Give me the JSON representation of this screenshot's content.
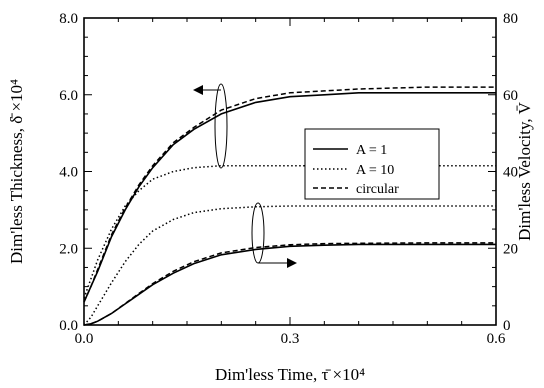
{
  "chart_data": {
    "type": "line",
    "xlabel": "Dim'less Time, τ̄ ×10⁴",
    "ylabel_left": "Dim'less Thickness, δ̄ ×10⁴",
    "ylabel_right": "Dim'less Velocity, V̄",
    "xlim": [
      0,
      0.6
    ],
    "ylim_left": [
      0,
      8
    ],
    "ylim_right": [
      0,
      80
    ],
    "x_ticks": [
      "0.0",
      "0.3",
      "0.6"
    ],
    "y_left_ticks": [
      "0.0",
      "2.0",
      "4.0",
      "6.0",
      "8.0"
    ],
    "y_right_ticks": [
      "0",
      "20",
      "40",
      "60",
      "80"
    ],
    "grid": false,
    "legend": {
      "placement": "right",
      "entries": [
        {
          "label": "A = 1",
          "style": "solid"
        },
        {
          "label": "A = 10",
          "style": "dotted"
        },
        {
          "label": "circular",
          "style": "dashed"
        }
      ]
    },
    "series": [
      {
        "legend": "A = 1",
        "axis": "left",
        "style": "solid",
        "x": [
          0,
          0.01,
          0.02,
          0.04,
          0.06,
          0.08,
          0.1,
          0.13,
          0.16,
          0.2,
          0.25,
          0.3,
          0.35,
          0.4,
          0.5,
          0.6
        ],
        "y": [
          0.6,
          1.0,
          1.4,
          2.3,
          3.0,
          3.6,
          4.1,
          4.7,
          5.1,
          5.5,
          5.8,
          5.95,
          6.0,
          6.05,
          6.05,
          6.05
        ]
      },
      {
        "legend": "circular",
        "axis": "left",
        "style": "dashed",
        "x": [
          0,
          0.01,
          0.02,
          0.04,
          0.06,
          0.08,
          0.1,
          0.13,
          0.16,
          0.2,
          0.25,
          0.3,
          0.35,
          0.4,
          0.5,
          0.6
        ],
        "y": [
          0.6,
          1.0,
          1.45,
          2.35,
          3.05,
          3.65,
          4.15,
          4.75,
          5.15,
          5.6,
          5.9,
          6.05,
          6.1,
          6.15,
          6.2,
          6.2
        ]
      },
      {
        "legend": "A = 10",
        "axis": "left",
        "style": "dotted",
        "x": [
          0,
          0.01,
          0.02,
          0.04,
          0.06,
          0.08,
          0.1,
          0.13,
          0.16,
          0.2,
          0.25,
          0.3,
          0.4,
          0.5,
          0.6
        ],
        "y": [
          0.7,
          1.2,
          1.7,
          2.5,
          3.1,
          3.5,
          3.8,
          4.0,
          4.1,
          4.15,
          4.15,
          4.15,
          4.15,
          4.15,
          4.15
        ]
      },
      {
        "legend": "A = 10",
        "axis": "right",
        "style": "dotted",
        "x": [
          0,
          0.01,
          0.02,
          0.04,
          0.06,
          0.08,
          0.1,
          0.13,
          0.16,
          0.2,
          0.25,
          0.3,
          0.4,
          0.5,
          0.6
        ],
        "y": [
          0,
          2,
          5,
          11,
          16.5,
          21,
          24.5,
          27.5,
          29.3,
          30.3,
          30.8,
          31,
          31,
          31,
          31
        ]
      },
      {
        "legend": "A = 1",
        "axis": "right",
        "style": "solid",
        "x": [
          0,
          0.01,
          0.02,
          0.04,
          0.06,
          0.08,
          0.1,
          0.13,
          0.16,
          0.2,
          0.25,
          0.3,
          0.35,
          0.4,
          0.5,
          0.6
        ],
        "y": [
          0,
          0.3,
          1,
          3,
          5.5,
          8,
          10.5,
          13.5,
          16,
          18.3,
          19.7,
          20.5,
          20.8,
          21,
          21,
          21
        ]
      },
      {
        "legend": "circular",
        "axis": "right",
        "style": "dashed",
        "x": [
          0,
          0.01,
          0.02,
          0.04,
          0.06,
          0.08,
          0.1,
          0.13,
          0.16,
          0.2,
          0.25,
          0.3,
          0.35,
          0.4,
          0.5,
          0.6
        ],
        "y": [
          0,
          0.3,
          1,
          3,
          5.6,
          8.2,
          10.8,
          14,
          16.5,
          18.8,
          20.2,
          20.9,
          21.2,
          21.3,
          21.4,
          21.4
        ]
      }
    ],
    "annotations": [
      {
        "type": "arrow",
        "direction": "left",
        "refers_to": "left axis curves"
      },
      {
        "type": "arrow",
        "direction": "right",
        "refers_to": "right axis curves"
      }
    ]
  }
}
